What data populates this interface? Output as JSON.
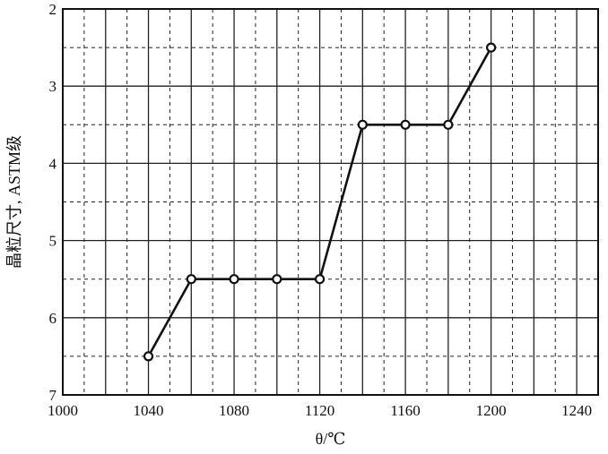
{
  "chart_data": {
    "type": "line",
    "xlabel": "θ/℃",
    "ylabel": "晶粒尺寸, ASTM级",
    "xlim": [
      1000,
      1250
    ],
    "ylim": [
      2,
      7
    ],
    "y_inverted": true,
    "x_ticks": [
      1000,
      1040,
      1080,
      1120,
      1160,
      1200,
      1240
    ],
    "y_ticks": [
      2,
      3,
      4,
      5,
      6,
      7
    ],
    "grid": "solid major lines with dashed minor lines",
    "series": [
      {
        "x": [
          1040,
          1060,
          1080,
          1100,
          1120,
          1140,
          1160,
          1180,
          1200
        ],
        "y": [
          6.5,
          5.5,
          5.5,
          5.5,
          5.5,
          3.5,
          3.5,
          3.5,
          2.5
        ]
      }
    ]
  }
}
